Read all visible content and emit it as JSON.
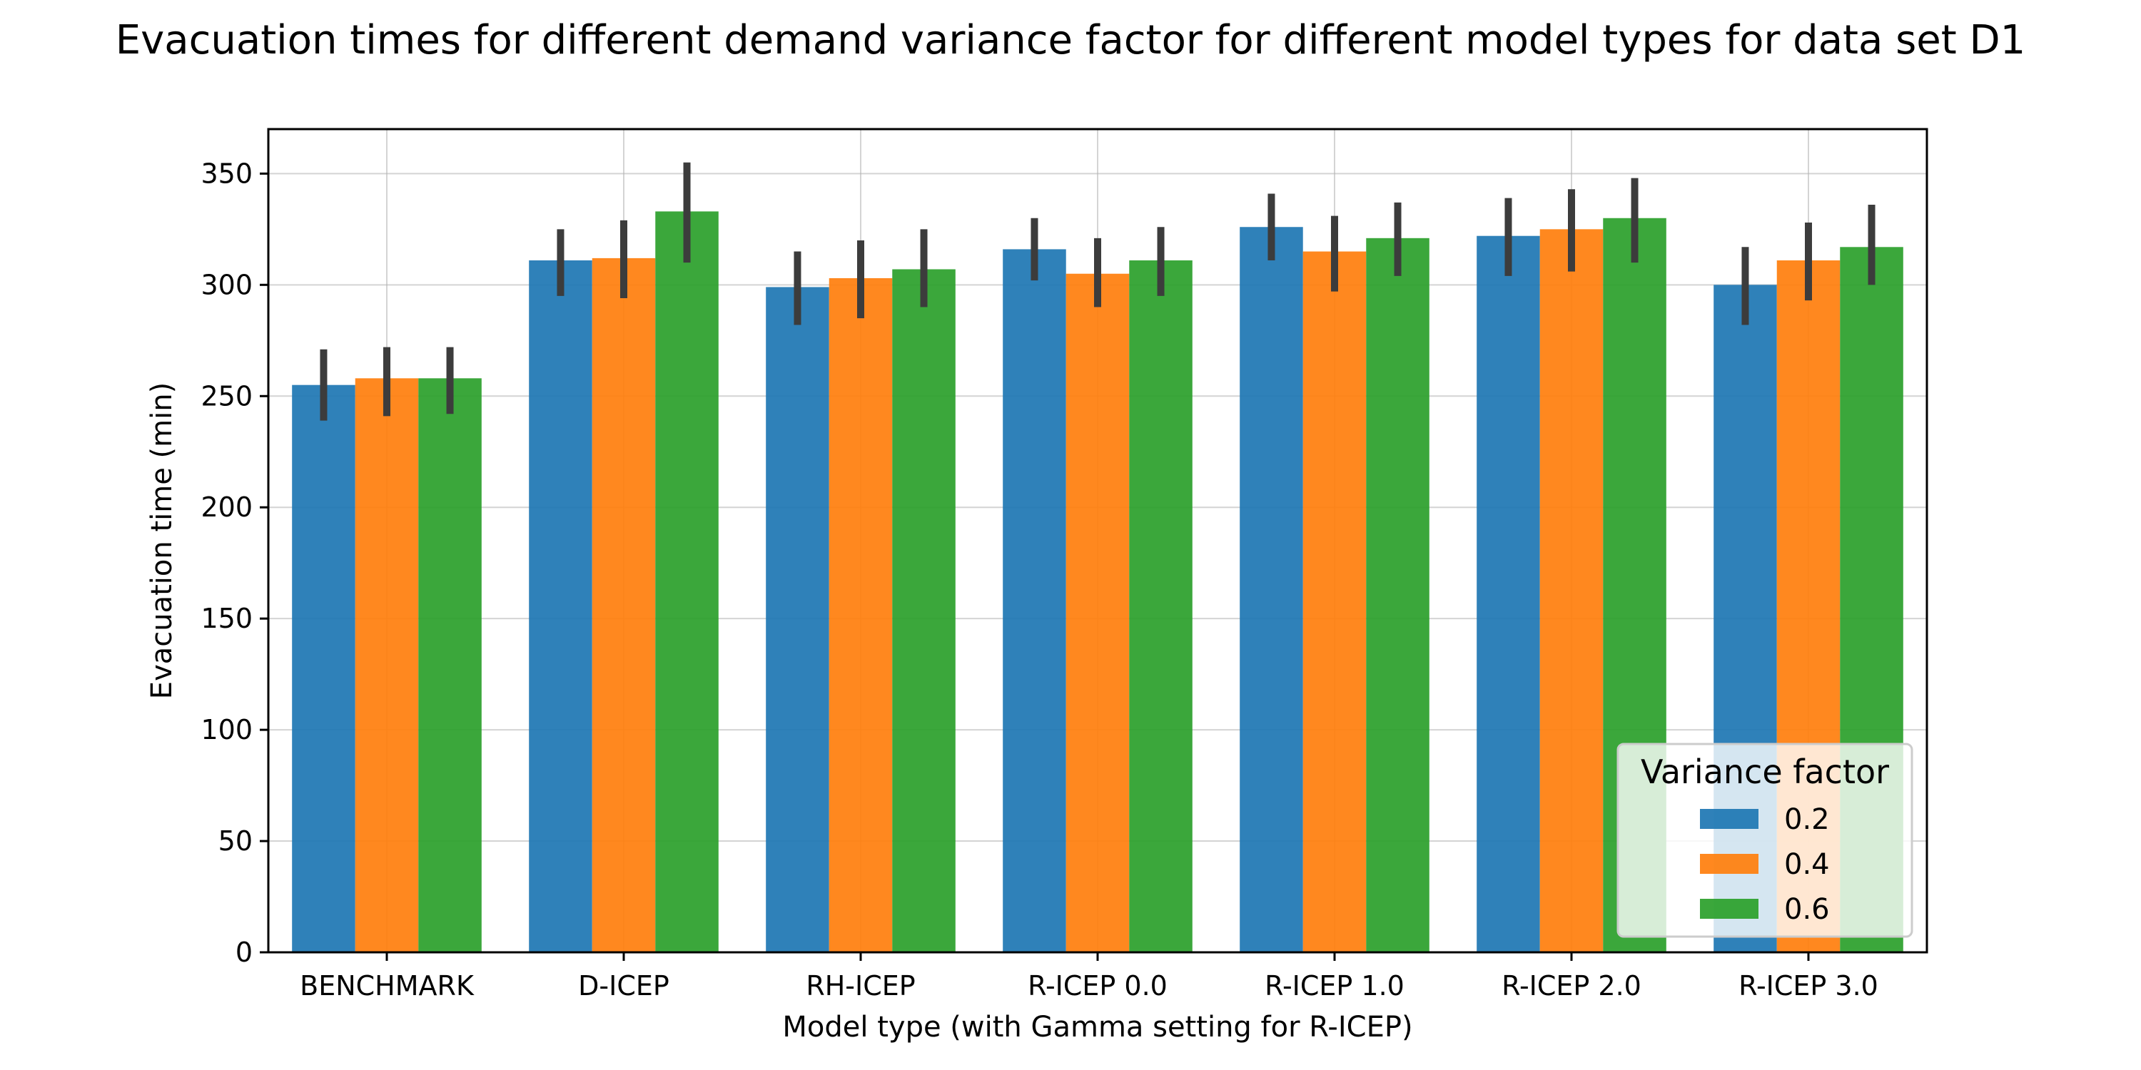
{
  "chart_data": {
    "type": "bar",
    "title": "Evacuation times for different demand variance factor for different model types for data set D1",
    "xlabel": "Model type (with Gamma setting for R-ICEP)",
    "ylabel": "Evacuation time (min)",
    "categories": [
      "BENCHMARK",
      "D-ICEP",
      "RH-ICEP",
      "R-ICEP 0.0",
      "R-ICEP 1.0",
      "R-ICEP 2.0",
      "R-ICEP 3.0"
    ],
    "ylim": [
      0,
      370
    ],
    "yticks": [
      0,
      50,
      100,
      150,
      200,
      250,
      300,
      350
    ],
    "grid": true,
    "legend": {
      "title": "Variance factor",
      "placement": "lower-right"
    },
    "series": [
      {
        "name": "0.2",
        "color": "#1f77b4",
        "values": [
          255,
          311,
          299,
          316,
          326,
          322,
          300
        ],
        "err_low": [
          239,
          295,
          282,
          302,
          311,
          304,
          282
        ],
        "err_high": [
          271,
          325,
          315,
          330,
          341,
          339,
          317
        ]
      },
      {
        "name": "0.4",
        "color": "#ff7f0e",
        "values": [
          258,
          312,
          303,
          305,
          315,
          325,
          311
        ],
        "err_low": [
          241,
          294,
          285,
          290,
          297,
          306,
          293
        ],
        "err_high": [
          272,
          329,
          320,
          321,
          331,
          343,
          328
        ]
      },
      {
        "name": "0.6",
        "color": "#2ca02c",
        "values": [
          258,
          333,
          307,
          311,
          321,
          330,
          317
        ],
        "err_low": [
          242,
          310,
          290,
          295,
          304,
          310,
          300
        ],
        "err_high": [
          272,
          355,
          325,
          326,
          337,
          348,
          336
        ]
      }
    ]
  }
}
